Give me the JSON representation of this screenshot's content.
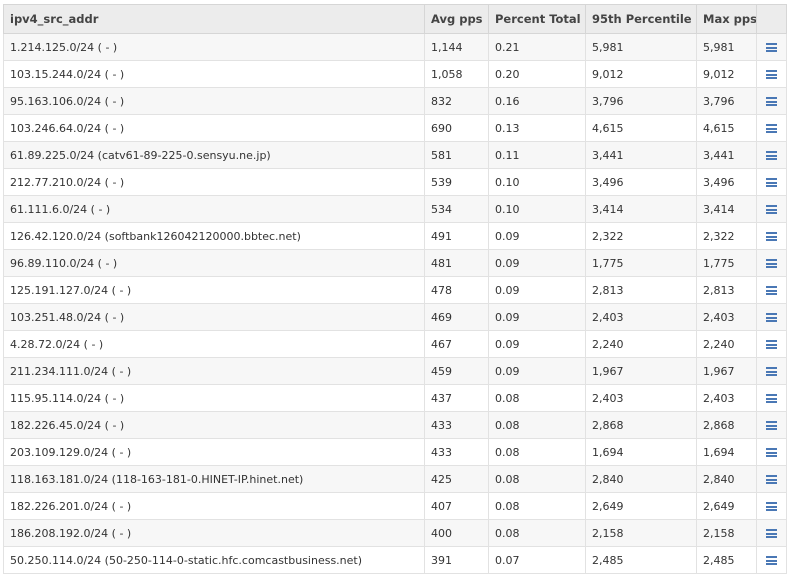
{
  "table": {
    "columns": [
      "ipv4_src_addr",
      "Avg pps",
      "Percent Total",
      "95th Percentile",
      "Max pps"
    ],
    "row_action_icon": "menu-icon",
    "accent_color": "#4a78b5",
    "rows": [
      {
        "addr": "1.214.125.0/24 ( - )",
        "avg": "1,144",
        "pct": "0.21",
        "p95": "5,981",
        "max": "5,981"
      },
      {
        "addr": "103.15.244.0/24 ( - )",
        "avg": "1,058",
        "pct": "0.20",
        "p95": "9,012",
        "max": "9,012"
      },
      {
        "addr": "95.163.106.0/24 ( - )",
        "avg": "832",
        "pct": "0.16",
        "p95": "3,796",
        "max": "3,796"
      },
      {
        "addr": "103.246.64.0/24 ( - )",
        "avg": "690",
        "pct": "0.13",
        "p95": "4,615",
        "max": "4,615"
      },
      {
        "addr": "61.89.225.0/24 (catv61-89-225-0.sensyu.ne.jp)",
        "avg": "581",
        "pct": "0.11",
        "p95": "3,441",
        "max": "3,441"
      },
      {
        "addr": "212.77.210.0/24 ( - )",
        "avg": "539",
        "pct": "0.10",
        "p95": "3,496",
        "max": "3,496"
      },
      {
        "addr": "61.111.6.0/24 ( - )",
        "avg": "534",
        "pct": "0.10",
        "p95": "3,414",
        "max": "3,414"
      },
      {
        "addr": "126.42.120.0/24 (softbank126042120000.bbtec.net)",
        "avg": "491",
        "pct": "0.09",
        "p95": "2,322",
        "max": "2,322"
      },
      {
        "addr": "96.89.110.0/24 ( - )",
        "avg": "481",
        "pct": "0.09",
        "p95": "1,775",
        "max": "1,775"
      },
      {
        "addr": "125.191.127.0/24 ( - )",
        "avg": "478",
        "pct": "0.09",
        "p95": "2,813",
        "max": "2,813"
      },
      {
        "addr": "103.251.48.0/24 ( - )",
        "avg": "469",
        "pct": "0.09",
        "p95": "2,403",
        "max": "2,403"
      },
      {
        "addr": "4.28.72.0/24 ( - )",
        "avg": "467",
        "pct": "0.09",
        "p95": "2,240",
        "max": "2,240"
      },
      {
        "addr": "211.234.111.0/24 ( - )",
        "avg": "459",
        "pct": "0.09",
        "p95": "1,967",
        "max": "1,967"
      },
      {
        "addr": "115.95.114.0/24 ( - )",
        "avg": "437",
        "pct": "0.08",
        "p95": "2,403",
        "max": "2,403"
      },
      {
        "addr": "182.226.45.0/24 ( - )",
        "avg": "433",
        "pct": "0.08",
        "p95": "2,868",
        "max": "2,868"
      },
      {
        "addr": "203.109.129.0/24 ( - )",
        "avg": "433",
        "pct": "0.08",
        "p95": "1,694",
        "max": "1,694"
      },
      {
        "addr": "118.163.181.0/24 (118-163-181-0.HINET-IP.hinet.net)",
        "avg": "425",
        "pct": "0.08",
        "p95": "2,840",
        "max": "2,840"
      },
      {
        "addr": "182.226.201.0/24 ( - )",
        "avg": "407",
        "pct": "0.08",
        "p95": "2,649",
        "max": "2,649"
      },
      {
        "addr": "186.208.192.0/24 ( - )",
        "avg": "400",
        "pct": "0.08",
        "p95": "2,158",
        "max": "2,158"
      },
      {
        "addr": "50.250.114.0/24 (50-250-114-0-static.hfc.comcastbusiness.net)",
        "avg": "391",
        "pct": "0.07",
        "p95": "2,485",
        "max": "2,485"
      }
    ]
  }
}
